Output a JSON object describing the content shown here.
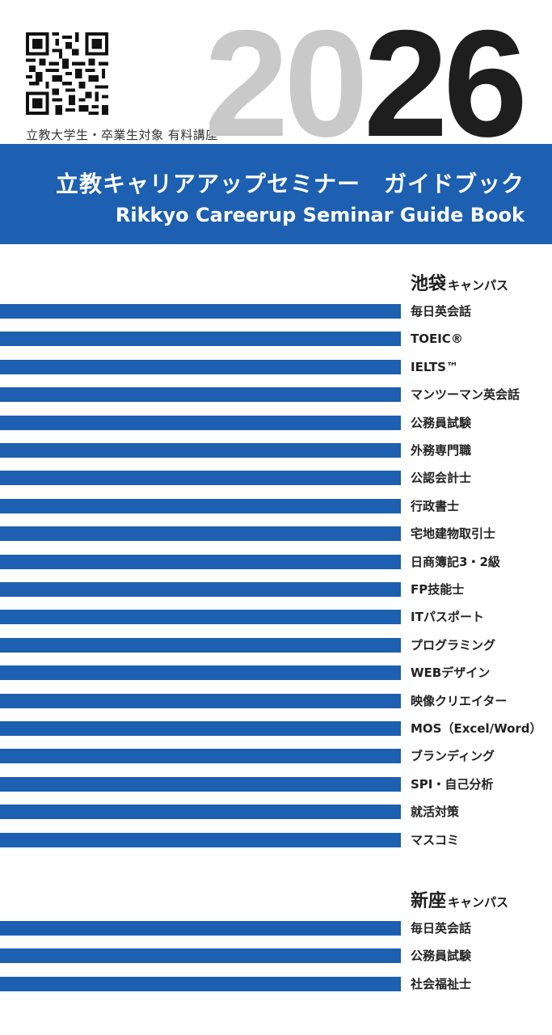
{
  "header": {
    "audience": "立教大学生・卒業生対象 有料講座",
    "year_part1": "20",
    "year_part2": "26",
    "title_ja": "立教キャリアアップセミナー　ガイドブック",
    "title_en": "Rikkyo Careerup Seminar Guide Book"
  },
  "colors": {
    "brand_blue": "#1d5fb0",
    "year_grey": "#c9c9c9",
    "year_black": "#1e1e1e"
  },
  "ikebukuro": {
    "name": "池袋",
    "suffix": "キャンパス",
    "courses": [
      "毎日英会話",
      "TOEIC®",
      "IELTS™",
      "マンツーマン英会話",
      "公務員試験",
      "外務専門職",
      "公認会計士",
      "行政書士",
      "宅地建物取引士",
      "日商簿記3・2級",
      "FP技能士",
      "ITパスポート",
      "プログラミング",
      "WEBデザイン",
      "映像クリエイター",
      "MOS（Excel/Word）",
      "ブランディング",
      "SPI・自己分析",
      "就活対策",
      "マスコミ"
    ]
  },
  "niiza": {
    "name": "新座",
    "suffix": "キャンパス",
    "courses": [
      "毎日英会話",
      "公務員試験",
      "社会福祉士"
    ]
  }
}
